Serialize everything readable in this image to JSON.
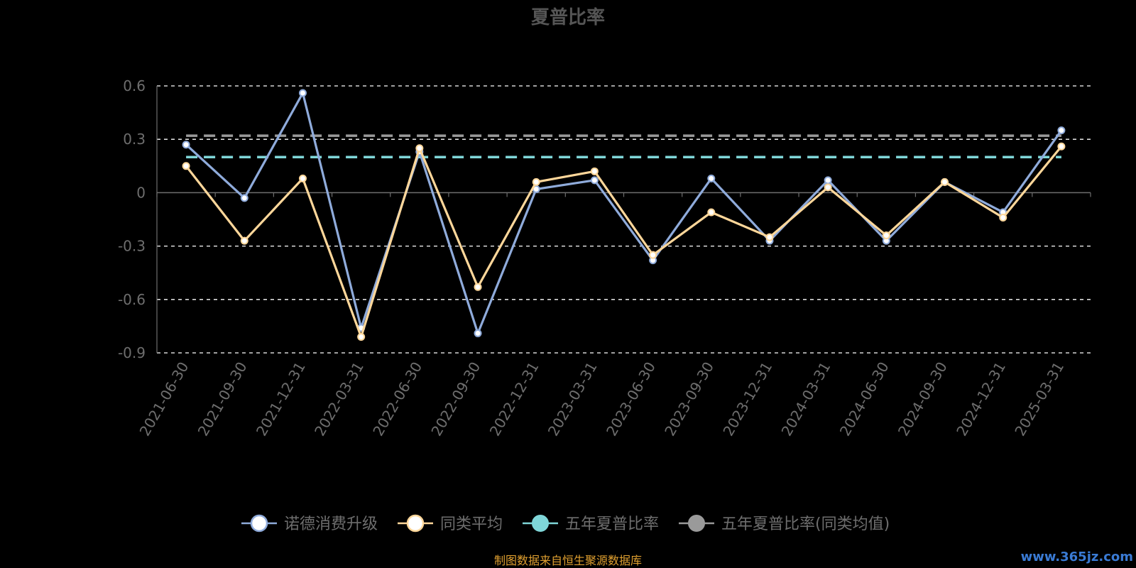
{
  "source_note": "制图数据来自恒生聚源数据库",
  "watermark": "www.365jz.com",
  "colors": {
    "background": "#000000",
    "fund": "#8fabdb",
    "peer_avg": "#ffd79a",
    "five_year": "#7fd6d8",
    "five_year_avg": "#9a9a9a",
    "grid": "#ffffff",
    "axis": "#6e6e6e"
  },
  "chart_data": {
    "type": "line",
    "title": "夏普比率",
    "xlabel": "",
    "ylabel": "",
    "ylim": [
      -0.9,
      0.6
    ],
    "yticks": [
      0.6,
      0.3,
      0,
      -0.3,
      -0.6,
      -0.9
    ],
    "ytick_labels": [
      "0.6",
      "0.3",
      "0",
      "-0.3",
      "-0.6",
      "-0.9"
    ],
    "categories": [
      "2021-06-30",
      "2021-09-30",
      "2021-12-31",
      "2022-03-31",
      "2022-06-30",
      "2022-09-30",
      "2022-12-31",
      "2023-03-31",
      "2023-06-30",
      "2023-09-30",
      "2023-12-31",
      "2024-03-31",
      "2024-06-30",
      "2024-09-30",
      "2024-12-31",
      "2025-03-31"
    ],
    "series": [
      {
        "name": "诺德消费升级",
        "kind": "line",
        "color": "#8fabdb",
        "values": [
          0.27,
          -0.03,
          0.56,
          -0.76,
          0.23,
          -0.79,
          0.02,
          0.07,
          -0.38,
          0.08,
          -0.27,
          0.07,
          -0.27,
          0.06,
          -0.11,
          0.35
        ]
      },
      {
        "name": "同类平均",
        "kind": "line",
        "color": "#ffd79a",
        "values": [
          0.15,
          -0.27,
          0.08,
          -0.81,
          0.25,
          -0.53,
          0.06,
          0.12,
          -0.35,
          -0.11,
          -0.25,
          0.03,
          -0.24,
          0.06,
          -0.14,
          0.26
        ]
      },
      {
        "name": "五年夏普比率",
        "kind": "reference",
        "color": "#7fd6d8",
        "value": 0.2
      },
      {
        "name": "五年夏普比率(同类均值)",
        "kind": "reference",
        "color": "#9a9a9a",
        "value": 0.32
      }
    ],
    "grid": true,
    "legend_position": "bottom"
  }
}
